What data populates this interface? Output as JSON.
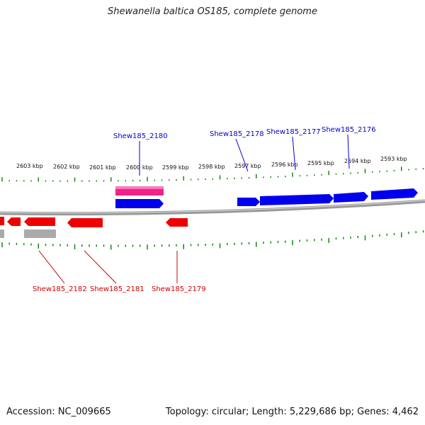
{
  "title": "Shewanella baltica OS185, complete genome",
  "footer": {
    "accession_label": "Accession: NC_009665",
    "summary": "Topology: circular; Length: 5,229,686 bp; Genes: 4,462"
  },
  "colors": {
    "forward_gene": "#0000ee",
    "reverse_gene": "#ee0000",
    "rna_feature": "#ee2288",
    "pseudo_feature": "#aaaaaa",
    "tick": "#118811",
    "backbone": "#888888"
  },
  "ruler_labels": [
    {
      "kbp": 2603,
      "text": "2603 kbp"
    },
    {
      "kbp": 2602,
      "text": "2602 kbp"
    },
    {
      "kbp": 2601,
      "text": "2601 kbp"
    },
    {
      "kbp": 2600,
      "text": "2600 kbp"
    },
    {
      "kbp": 2599,
      "text": "2599 kbp"
    },
    {
      "kbp": 2598,
      "text": "2598 kbp"
    },
    {
      "kbp": 2597,
      "text": "2597 kbp"
    },
    {
      "kbp": 2596,
      "text": "2596 kbp"
    },
    {
      "kbp": 2595,
      "text": "2595 kbp"
    },
    {
      "kbp": 2594,
      "text": "2594 kbp"
    },
    {
      "kbp": 2593,
      "text": "2593 kbp"
    }
  ],
  "gene_labels": [
    {
      "text": "Shew185_2180",
      "strand": "forward"
    },
    {
      "text": "Shew185_2178",
      "strand": "forward"
    },
    {
      "text": "Shew185_2177",
      "strand": "forward"
    },
    {
      "text": "Shew185_2176",
      "strand": "forward"
    },
    {
      "text": "Shew185_2182",
      "strand": "reverse"
    },
    {
      "text": "Shew185_2181",
      "strand": "reverse"
    },
    {
      "text": "Shew185_2179",
      "strand": "reverse"
    }
  ]
}
